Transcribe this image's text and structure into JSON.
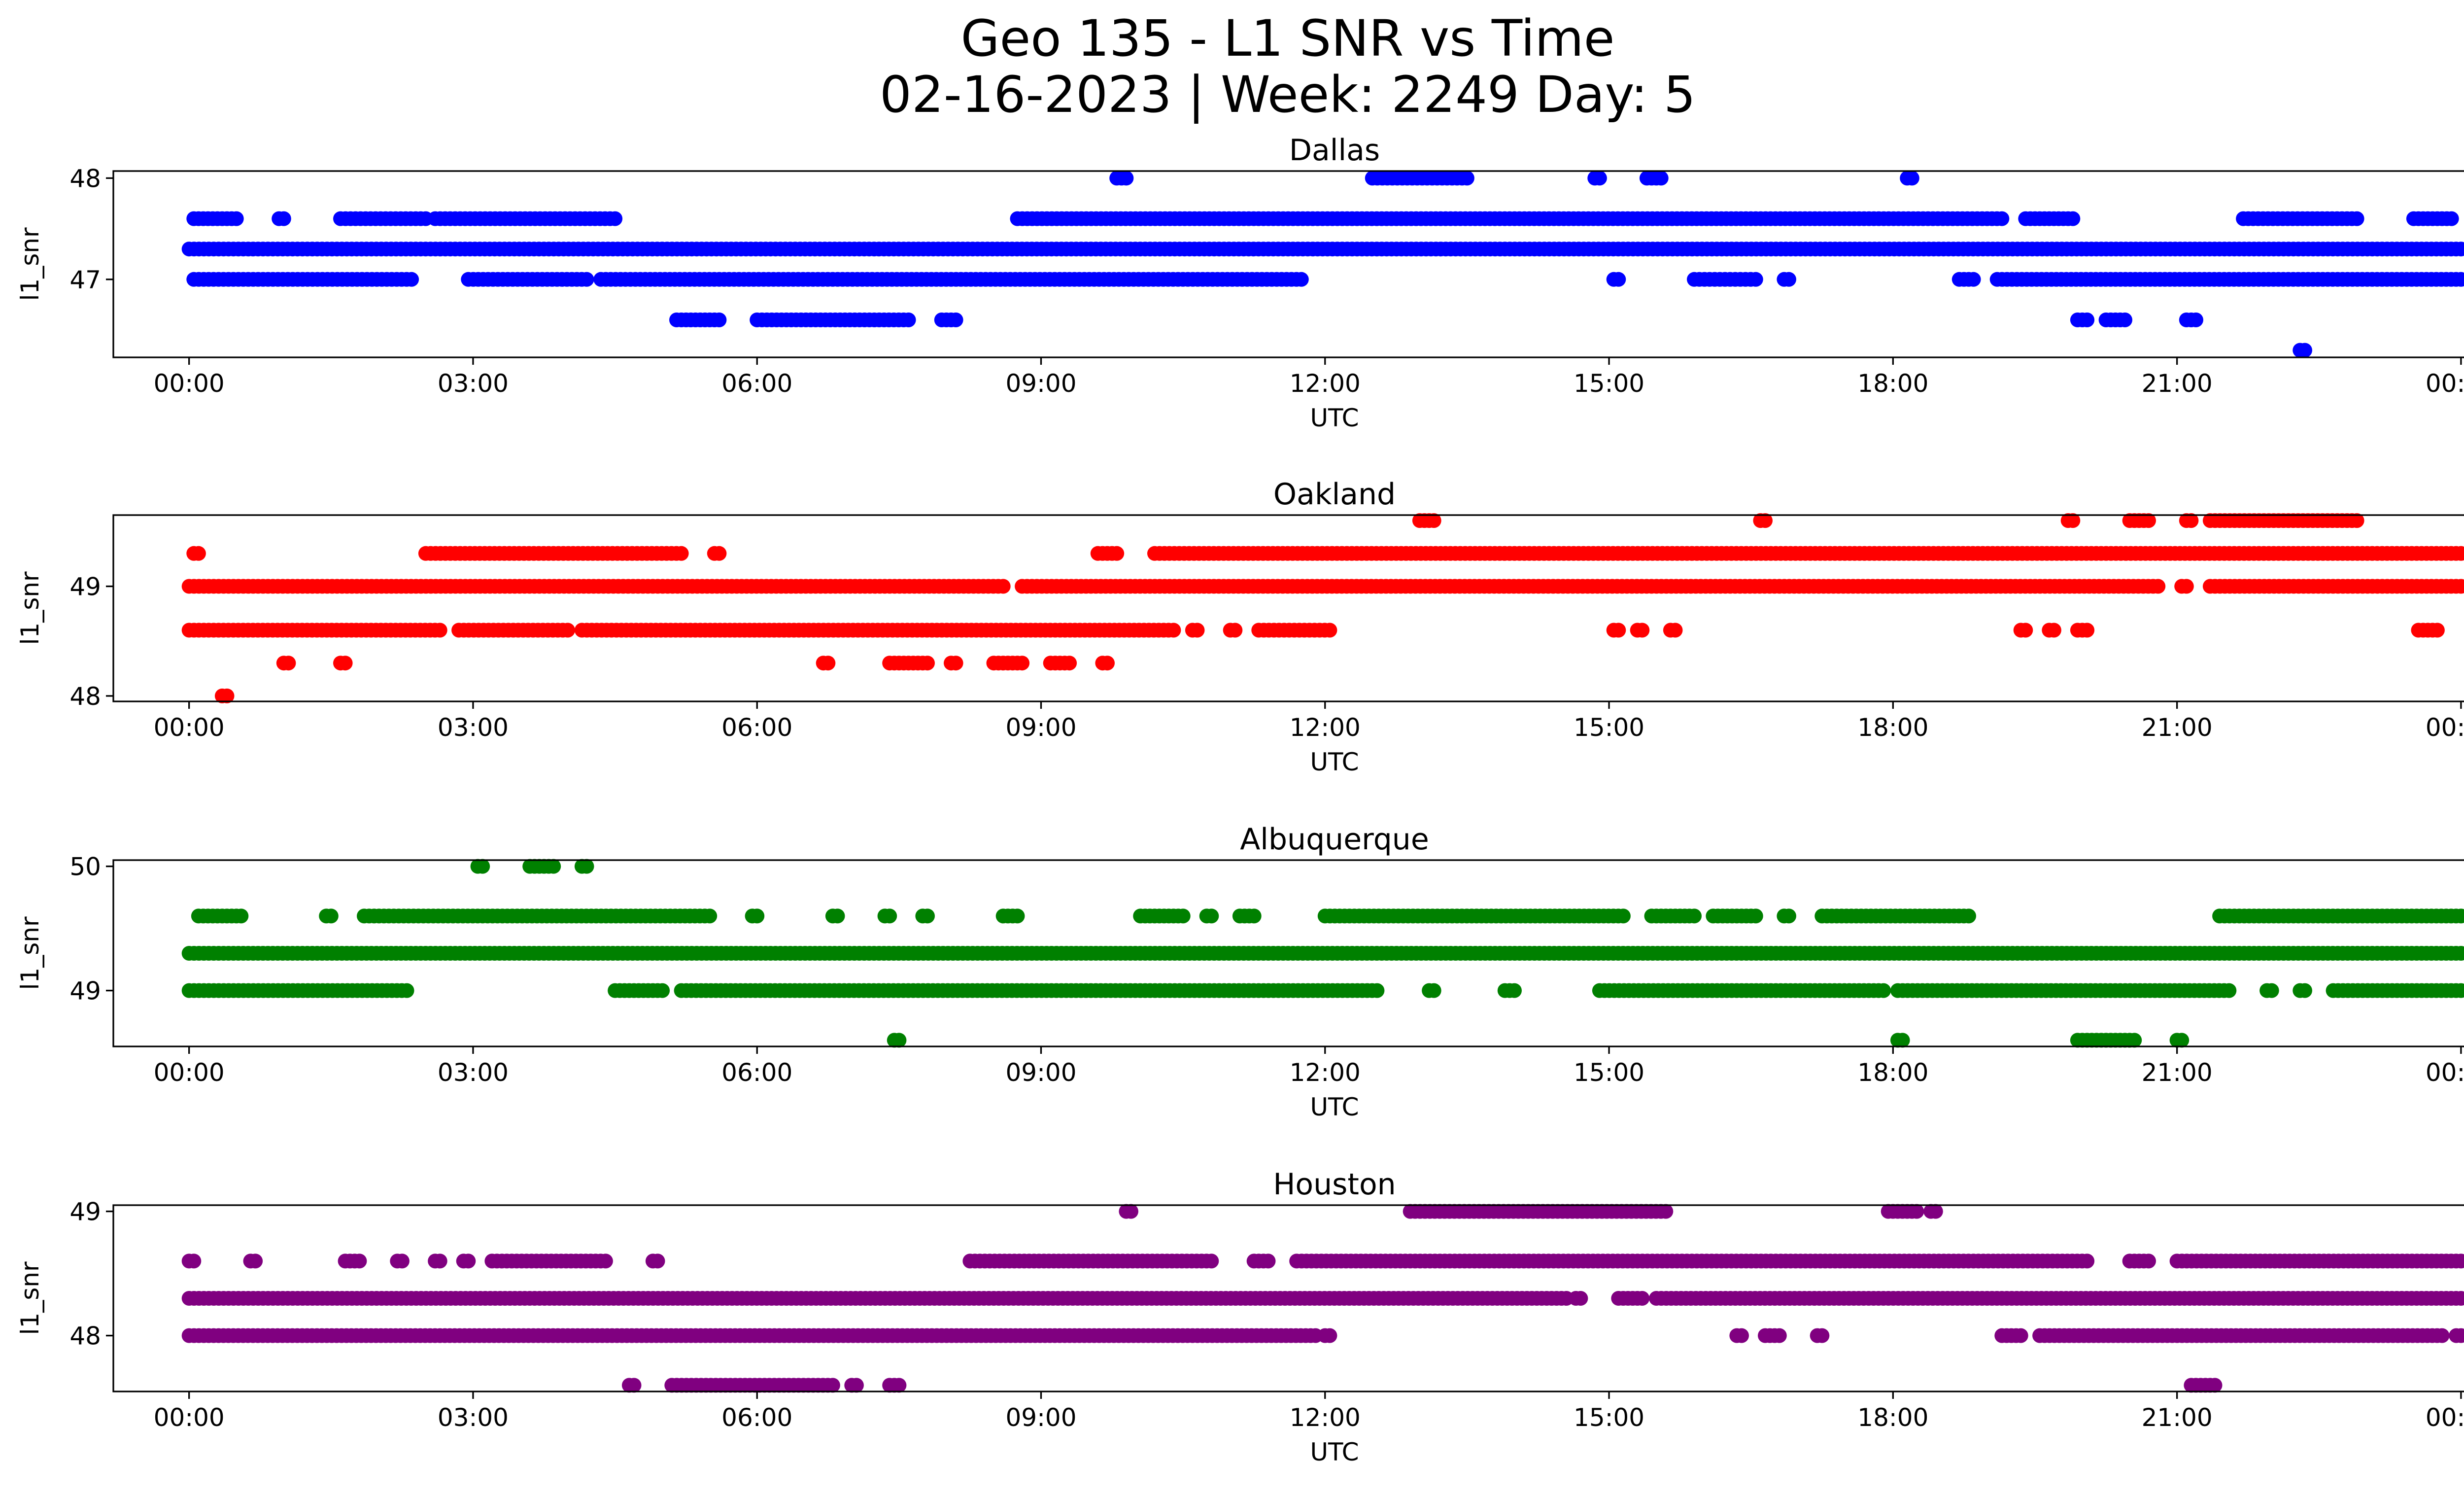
{
  "figure": {
    "title_line1": "Geo 135 - L1 SNR vs Time",
    "title_line2": "02-16-2023 | Week: 2249 Day: 5"
  },
  "chart_data": [
    {
      "type": "scatter",
      "title": "Dallas",
      "xlabel": "UTC",
      "ylabel": "l1_snr",
      "color": "#0000ff",
      "xlim": [
        -0.8,
        25.0
      ],
      "ylim": [
        46.23,
        48.07
      ],
      "xticks": [
        "00:00",
        "03:00",
        "06:00",
        "09:00",
        "12:00",
        "15:00",
        "18:00",
        "21:00",
        "00:00"
      ],
      "yticks": [
        "47",
        "48"
      ],
      "series": [
        {
          "y": 47.3,
          "x_ranges": [
            [
              0.0,
              24.0
            ]
          ]
        },
        {
          "y": 47.0,
          "x_ranges": [
            [
              0.05,
              2.35
            ],
            [
              2.95,
              4.2
            ],
            [
              4.35,
              11.75
            ],
            [
              15.05,
              15.1
            ],
            [
              15.9,
              16.55
            ],
            [
              16.85,
              16.9
            ],
            [
              18.7,
              18.85
            ],
            [
              19.1,
              24.0
            ]
          ]
        },
        {
          "y": 47.6,
          "x_ranges": [
            [
              0.05,
              0.5
            ],
            [
              0.95,
              1.0
            ],
            [
              1.6,
              2.5
            ],
            [
              2.6,
              4.5
            ],
            [
              8.75,
              19.15
            ],
            [
              19.4,
              19.9
            ],
            [
              21.7,
              22.9
            ],
            [
              23.5,
              23.9
            ]
          ]
        },
        {
          "y": 46.6,
          "x_ranges": [
            [
              5.15,
              5.6
            ],
            [
              6.0,
              7.6
            ],
            [
              7.95,
              8.1
            ],
            [
              19.95,
              20.05
            ],
            [
              20.25,
              20.45
            ],
            [
              21.1,
              21.2
            ]
          ]
        },
        {
          "y": 48.0,
          "x_ranges": [
            [
              9.8,
              9.9
            ],
            [
              12.5,
              13.5
            ],
            [
              14.85,
              14.9
            ],
            [
              15.4,
              15.55
            ],
            [
              18.15,
              18.2
            ]
          ]
        },
        {
          "y": 46.3,
          "x_ranges": [
            [
              22.3,
              22.35
            ]
          ]
        }
      ]
    },
    {
      "type": "scatter",
      "title": "Oakland",
      "xlabel": "UTC",
      "ylabel": "l1_snr",
      "color": "#ff0000",
      "xlim": [
        -0.8,
        25.0
      ],
      "ylim": [
        47.95,
        49.65
      ],
      "xticks": [
        "00:00",
        "03:00",
        "06:00",
        "09:00",
        "12:00",
        "15:00",
        "18:00",
        "21:00",
        "00:00"
      ],
      "yticks": [
        "48",
        "49"
      ],
      "series": [
        {
          "y": 49.0,
          "x_ranges": [
            [
              0.0,
              8.6
            ],
            [
              8.8,
              20.8
            ],
            [
              21.05,
              21.1
            ],
            [
              21.35,
              24.0
            ]
          ]
        },
        {
          "y": 48.6,
          "x_ranges": [
            [
              0.0,
              2.65
            ],
            [
              2.85,
              4.0
            ],
            [
              4.15,
              10.4
            ],
            [
              10.6,
              10.65
            ],
            [
              11.0,
              11.05
            ],
            [
              11.3,
              12.05
            ],
            [
              15.05,
              15.1
            ],
            [
              15.3,
              15.35
            ],
            [
              15.65,
              15.7
            ],
            [
              19.35,
              19.4
            ],
            [
              19.65,
              19.7
            ],
            [
              19.95,
              20.05
            ],
            [
              23.55,
              23.75
            ]
          ]
        },
        {
          "y": 49.3,
          "x_ranges": [
            [
              0.05,
              0.1
            ],
            [
              2.5,
              5.2
            ],
            [
              5.55,
              5.6
            ],
            [
              9.6,
              9.8
            ],
            [
              10.2,
              24.0
            ]
          ]
        },
        {
          "y": 48.3,
          "x_ranges": [
            [
              1.0,
              1.05
            ],
            [
              1.6,
              1.65
            ],
            [
              6.7,
              6.75
            ],
            [
              7.4,
              7.8
            ],
            [
              8.05,
              8.1
            ],
            [
              8.5,
              8.8
            ],
            [
              9.1,
              9.3
            ],
            [
              9.65,
              9.7
            ]
          ]
        },
        {
          "y": 49.6,
          "x_ranges": [
            [
              13.0,
              13.15
            ],
            [
              16.6,
              16.65
            ],
            [
              19.85,
              19.9
            ],
            [
              20.5,
              20.7
            ],
            [
              21.1,
              21.15
            ],
            [
              21.35,
              22.9
            ]
          ]
        },
        {
          "y": 48.0,
          "x_ranges": [
            [
              0.35,
              0.4
            ]
          ]
        }
      ]
    },
    {
      "type": "scatter",
      "title": "Albuquerque",
      "xlabel": "UTC",
      "ylabel": "l1_snr",
      "color": "#008000",
      "xlim": [
        -0.8,
        25.0
      ],
      "ylim": [
        48.55,
        50.05
      ],
      "xticks": [
        "00:00",
        "03:00",
        "06:00",
        "09:00",
        "12:00",
        "15:00",
        "18:00",
        "21:00",
        "00:00"
      ],
      "yticks": [
        "49",
        "50"
      ],
      "series": [
        {
          "y": 49.3,
          "x_ranges": [
            [
              0.0,
              24.0
            ]
          ]
        },
        {
          "y": 49.0,
          "x_ranges": [
            [
              0.0,
              2.3
            ],
            [
              4.5,
              5.0
            ],
            [
              5.2,
              12.55
            ],
            [
              13.1,
              13.15
            ],
            [
              13.9,
              14.0
            ],
            [
              14.9,
              17.9
            ],
            [
              18.05,
              21.55
            ],
            [
              21.95,
              22.0
            ],
            [
              22.3,
              22.35
            ],
            [
              22.65,
              24.0
            ]
          ]
        },
        {
          "y": 49.6,
          "x_ranges": [
            [
              0.1,
              0.55
            ],
            [
              1.45,
              1.5
            ],
            [
              1.85,
              5.5
            ],
            [
              5.95,
              6.0
            ],
            [
              6.8,
              6.85
            ],
            [
              7.35,
              7.4
            ],
            [
              7.75,
              7.8
            ],
            [
              8.6,
              8.75
            ],
            [
              10.05,
              10.5
            ],
            [
              10.75,
              10.8
            ],
            [
              11.1,
              11.25
            ],
            [
              12.0,
              15.15
            ],
            [
              15.45,
              15.9
            ],
            [
              16.1,
              16.55
            ],
            [
              16.85,
              16.9
            ],
            [
              17.25,
              18.8
            ],
            [
              21.45,
              24.0
            ]
          ]
        },
        {
          "y": 50.0,
          "x_ranges": [
            [
              3.05,
              3.1
            ],
            [
              3.6,
              3.85
            ],
            [
              4.15,
              4.2
            ]
          ]
        },
        {
          "y": 48.6,
          "x_ranges": [
            [
              7.45,
              7.5
            ],
            [
              18.05,
              18.1
            ],
            [
              19.95,
              20.55
            ],
            [
              21.0,
              21.05
            ]
          ]
        }
      ]
    },
    {
      "type": "scatter",
      "title": "Houston",
      "xlabel": "UTC",
      "ylabel": "l1_snr",
      "color": "#800080",
      "xlim": [
        -0.8,
        25.0
      ],
      "ylim": [
        47.55,
        49.05
      ],
      "xticks": [
        "00:00",
        "03:00",
        "06:00",
        "09:00",
        "12:00",
        "15:00",
        "18:00",
        "21:00",
        "00:00"
      ],
      "yticks": [
        "48",
        "49"
      ],
      "series": [
        {
          "y": 48.3,
          "x_ranges": [
            [
              0.0,
              14.55
            ],
            [
              14.65,
              14.7
            ],
            [
              15.1,
              15.35
            ],
            [
              15.5,
              24.0
            ]
          ]
        },
        {
          "y": 48.0,
          "x_ranges": [
            [
              0.0,
              11.9
            ],
            [
              12.0,
              12.05
            ],
            [
              16.35,
              16.4
            ],
            [
              16.65,
              16.8
            ],
            [
              17.2,
              17.25
            ],
            [
              19.15,
              19.35
            ],
            [
              19.55,
              23.8
            ],
            [
              23.95,
              24.0
            ]
          ]
        },
        {
          "y": 48.6,
          "x_ranges": [
            [
              0.0,
              0.05
            ],
            [
              0.65,
              0.7
            ],
            [
              1.65,
              1.8
            ],
            [
              2.2,
              2.25
            ],
            [
              2.6,
              2.65
            ],
            [
              2.9,
              2.95
            ],
            [
              3.2,
              4.4
            ],
            [
              4.9,
              4.95
            ],
            [
              8.25,
              10.8
            ],
            [
              11.25,
              11.4
            ],
            [
              11.7,
              20.05
            ],
            [
              20.5,
              20.7
            ],
            [
              21.0,
              24.0
            ]
          ]
        },
        {
          "y": 49.0,
          "x_ranges": [
            [
              9.9,
              9.95
            ],
            [
              12.9,
              15.6
            ],
            [
              17.95,
              18.25
            ],
            [
              18.4,
              18.45
            ]
          ]
        },
        {
          "y": 47.6,
          "x_ranges": [
            [
              4.65,
              4.7
            ],
            [
              5.1,
              6.8
            ],
            [
              7.0,
              7.05
            ],
            [
              7.4,
              7.5
            ],
            [
              21.15,
              21.4
            ]
          ]
        }
      ]
    }
  ]
}
